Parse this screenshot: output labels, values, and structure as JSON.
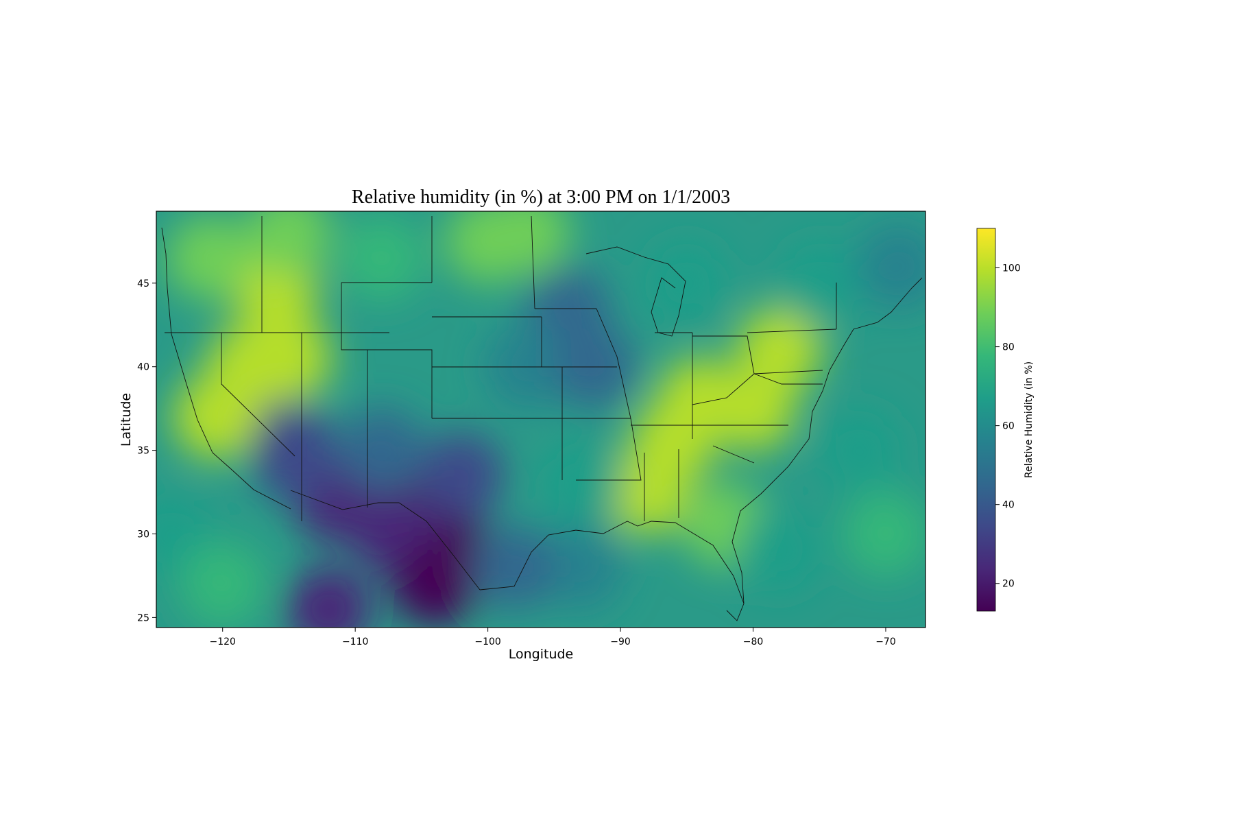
{
  "chart_data": {
    "type": "heatmap",
    "title": "Relative humidity (in %) at 3:00 PM on 1/1/2003",
    "xlabel": "Longitude",
    "ylabel": "Latitude",
    "xlim": [
      -125,
      -67
    ],
    "ylim": [
      24.4,
      49.3
    ],
    "x_ticks": [
      -120,
      -110,
      -100,
      -90,
      -80,
      -70
    ],
    "x_tick_labels": [
      "−120",
      "−110",
      "−100",
      "−90",
      "−80",
      "−70"
    ],
    "y_ticks": [
      25,
      30,
      35,
      40,
      45
    ],
    "y_tick_labels": [
      "25",
      "30",
      "35",
      "40",
      "45"
    ],
    "colorbar": {
      "label": "Relative Humidity (in %)",
      "range": [
        13,
        110
      ],
      "ticks": [
        20,
        40,
        60,
        80,
        100
      ],
      "tick_labels": [
        "20",
        "40",
        "60",
        "80",
        "100"
      ],
      "colormap": "viridis"
    },
    "humidity_regions": [
      {
        "lon": -103,
        "lat": 29,
        "value": 15
      },
      {
        "lon": -104,
        "lat": 31,
        "value": 18
      },
      {
        "lon": -111.5,
        "lat": 32,
        "value": 22
      },
      {
        "lon": -114.5,
        "lat": 34.5,
        "value": 30
      },
      {
        "lon": -112,
        "lat": 25.5,
        "value": 25
      },
      {
        "lon": -107,
        "lat": 30,
        "value": 25
      },
      {
        "lon": -104,
        "lat": 27,
        "value": 18
      },
      {
        "lon": -115,
        "lat": 35.5,
        "value": 35
      },
      {
        "lon": -108,
        "lat": 35,
        "value": 40
      },
      {
        "lon": -102,
        "lat": 33.5,
        "value": 38
      },
      {
        "lon": -94,
        "lat": 43.5,
        "value": 45
      },
      {
        "lon": -97,
        "lat": 40,
        "value": 55
      },
      {
        "lon": -92,
        "lat": 40,
        "value": 50
      },
      {
        "lon": -93,
        "lat": 28,
        "value": 52
      },
      {
        "lon": -98,
        "lat": 28,
        "value": 45
      },
      {
        "lon": -116,
        "lat": 44.5,
        "value": 102
      },
      {
        "lon": -115,
        "lat": 40.5,
        "value": 100
      },
      {
        "lon": -118,
        "lat": 40,
        "value": 98
      },
      {
        "lon": -121,
        "lat": 46.5,
        "value": 92
      },
      {
        "lon": -120.5,
        "lat": 37,
        "value": 95
      },
      {
        "lon": -86,
        "lat": 35.5,
        "value": 100
      },
      {
        "lon": -80,
        "lat": 37.5,
        "value": 102
      },
      {
        "lon": -84,
        "lat": 38,
        "value": 98
      },
      {
        "lon": -78,
        "lat": 41,
        "value": 95
      },
      {
        "lon": -88,
        "lat": 32.5,
        "value": 95
      },
      {
        "lon": -82,
        "lat": 30.5,
        "value": 90
      },
      {
        "lon": -93,
        "lat": 33,
        "value": 72
      },
      {
        "lon": -108,
        "lat": 46.5,
        "value": 78
      },
      {
        "lon": -100,
        "lat": 47.5,
        "value": 85
      },
      {
        "lon": -97,
        "lat": 48,
        "value": 92
      },
      {
        "lon": -85,
        "lat": 45,
        "value": 70
      },
      {
        "lon": -75,
        "lat": 45,
        "value": 65
      },
      {
        "lon": -69,
        "lat": 46,
        "value": 55
      },
      {
        "lon": -72,
        "lat": 35,
        "value": 72
      },
      {
        "lon": -70,
        "lat": 30,
        "value": 78
      },
      {
        "lon": -78,
        "lat": 29,
        "value": 62
      },
      {
        "lon": -124,
        "lat": 30,
        "value": 70
      },
      {
        "lon": -120,
        "lat": 27,
        "value": 80
      },
      {
        "lon": -115,
        "lat": 48,
        "value": 90
      }
    ]
  },
  "colors": {
    "viridis": [
      "#440154",
      "#482878",
      "#3e4989",
      "#31688e",
      "#26828e",
      "#1f9e89",
      "#35b779",
      "#6ece58",
      "#b5de2b",
      "#fde725"
    ]
  }
}
